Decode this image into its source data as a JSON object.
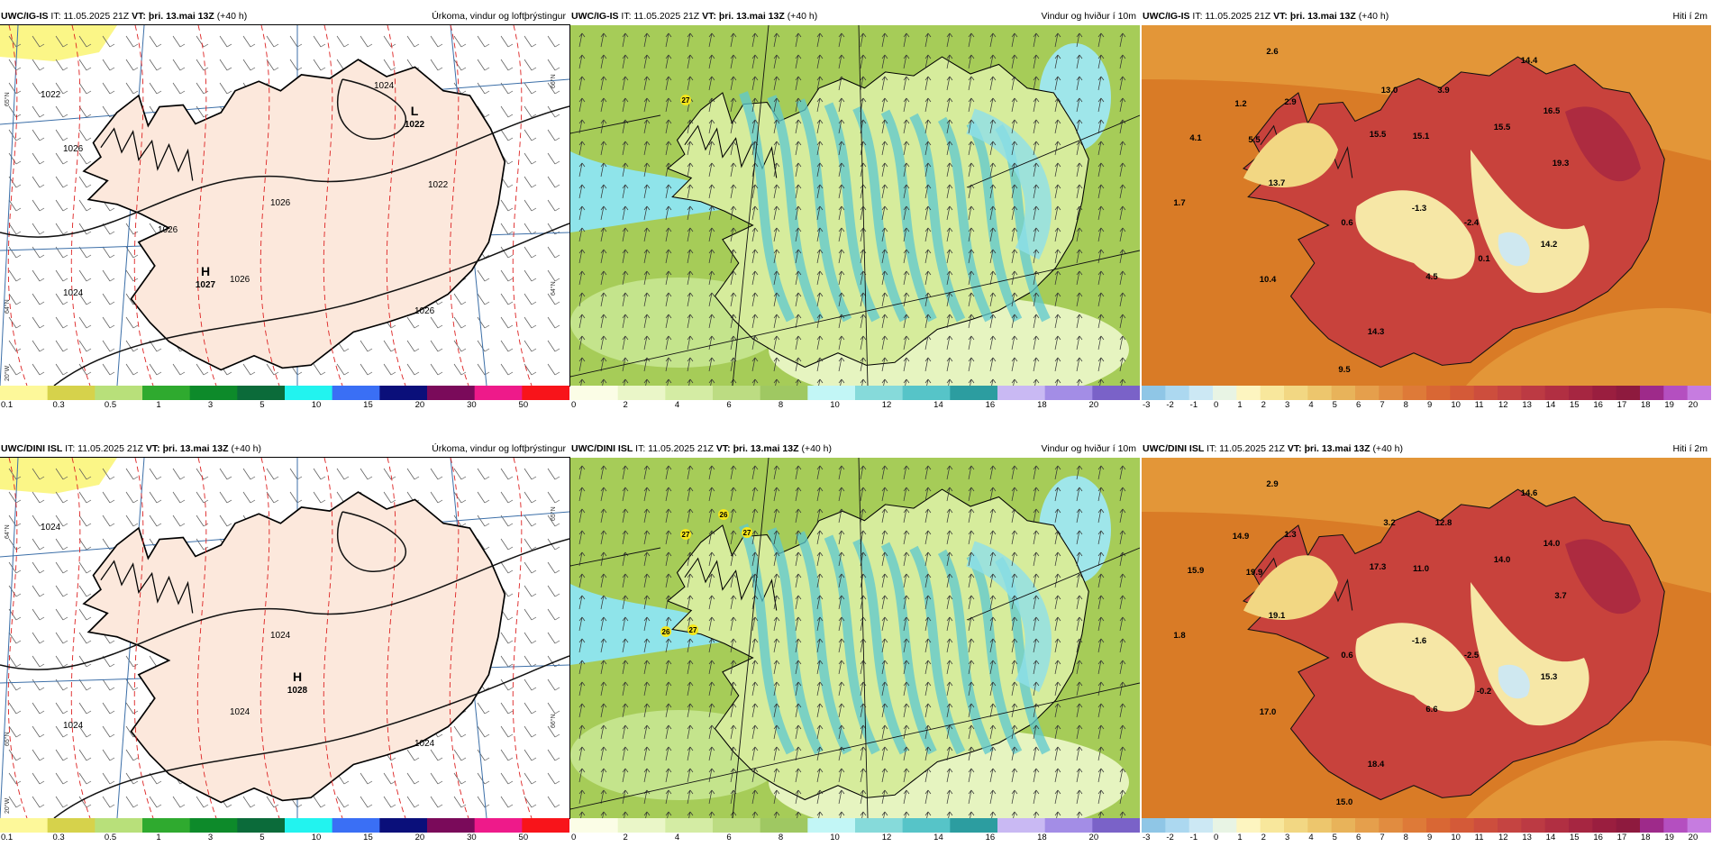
{
  "panels": [
    {
      "source": "UWC/IG-IS",
      "it": "IT: 11.05.2025 21Z",
      "vt_label": "VT:",
      "vt_date": "þri. 13.mai 13Z",
      "lead": "(+40 h)",
      "title": "Úrkoma, vindur og loftþrýstingur",
      "pressure_labels": [
        "1022",
        "1026",
        "1026",
        "1026",
        "1024",
        "1026",
        "1024",
        "1022",
        "1026"
      ],
      "centers": [
        {
          "letter": "L",
          "value": "1022"
        },
        {
          "letter": "H",
          "value": "1027"
        }
      ],
      "lat_labels": [
        "66°N",
        "64°N",
        "65°N",
        "64°N",
        "20°W"
      ]
    },
    {
      "source": "UWC/IG-IS",
      "it": "IT: 11.05.2025 21Z",
      "vt_label": "VT:",
      "vt_date": "þri. 13.mai 13Z",
      "lead": "(+40 h)",
      "title": "Vindur og hviður í 10m",
      "gust_labels": [
        "27"
      ]
    },
    {
      "source": "UWC/IG-IS",
      "it": "IT: 11.05.2025 21Z",
      "vt_label": "VT:",
      "vt_date": "þri. 13.mai 13Z",
      "lead": "(+40 h)",
      "title": "Hiti í 2m",
      "temp_labels": [
        "2.6",
        "1.2",
        "2.9",
        "13.0",
        "3.9",
        "14.4",
        "4.1",
        "5.5",
        "15.5",
        "15.1",
        "15.5",
        "16.5",
        "13.7",
        "19.3",
        "1.7",
        "0.6",
        "-1.3",
        "-2.4",
        "14.2",
        "0.1",
        "4.5",
        "10.4",
        "14.3",
        "9.5"
      ]
    },
    {
      "source": "UWC/DINI ISL",
      "it": "IT: 11.05.2025 21Z",
      "vt_label": "VT:",
      "vt_date": "þri. 13.mai 13Z",
      "lead": "(+40 h)",
      "title": "Úrkoma, vindur og loftþrýstingur",
      "pressure_labels": [
        "1024",
        "1024",
        "1024",
        "1024",
        "1024"
      ],
      "centers": [
        {
          "letter": "H",
          "value": "1028"
        }
      ],
      "lat_labels": [
        "65°N",
        "66°N",
        "64°N",
        "65°N",
        "20°W"
      ]
    },
    {
      "source": "UWC/DINI ISL",
      "it": "IT: 11.05.2025 21Z",
      "vt_label": "VT:",
      "vt_date": "þri. 13.mai 13Z",
      "lead": "(+40 h)",
      "title": "Vindur og hviður í 10m",
      "gust_labels": [
        "26",
        "27",
        "27",
        "26",
        "27"
      ]
    },
    {
      "source": "UWC/DINI ISL",
      "it": "IT: 11.05.2025 21Z",
      "vt_label": "VT:",
      "vt_date": "þri. 13.mai 13Z",
      "lead": "(+40 h)",
      "title": "Hiti í 2m",
      "temp_labels": [
        "2.9",
        "14.9",
        "1.3",
        "3.2",
        "12.8",
        "14.6",
        "15.9",
        "19.9",
        "17.3",
        "11.0",
        "14.0",
        "14.0",
        "19.1",
        "3.7",
        "1.8",
        "0.6",
        "-1.6",
        "-2.5",
        "15.3",
        "-0.2",
        "6.6",
        "17.0",
        "18.4",
        "15.0"
      ]
    }
  ],
  "colorbars": {
    "precip": {
      "ticks": [
        "0.1",
        "0.3",
        "0.5",
        "1",
        "3",
        "5",
        "10",
        "15",
        "20",
        "30",
        "50"
      ],
      "colors": [
        "#fdf89a",
        "#d6d24b",
        "#b8e07a",
        "#2faa2f",
        "#0d8a2a",
        "#0b6b3a",
        "#22f3ef",
        "#3a6ff5",
        "#0a0f7a",
        "#7a0a5a",
        "#ee1a8a",
        "#f8141a"
      ]
    },
    "wind": {
      "ticks": [
        "0",
        "2",
        "4",
        "6",
        "8",
        "10",
        "12",
        "14",
        "16",
        "18",
        "20"
      ],
      "colors": [
        "#fbfde6",
        "#eaf6c8",
        "#d4eca4",
        "#bcdc82",
        "#9fc862",
        "#c2f6f6",
        "#86dada",
        "#56c4c8",
        "#2c9da0",
        "#c9b9f3",
        "#a38de6",
        "#7a62c8"
      ]
    },
    "temp": {
      "ticks": [
        "-3",
        "-2",
        "-1",
        "0",
        "1",
        "2",
        "3",
        "4",
        "5",
        "6",
        "7",
        "8",
        "9",
        "10",
        "11",
        "12",
        "13",
        "14",
        "15",
        "16",
        "17",
        "18",
        "19",
        "20"
      ],
      "colors": [
        "#8fc6e6",
        "#acd8f0",
        "#cce8f4",
        "#e8f4e4",
        "#fdf5c0",
        "#f8e79c",
        "#f2d783",
        "#edc66d",
        "#e8b35a",
        "#e59f4c",
        "#e18c40",
        "#de7a38",
        "#d96734",
        "#d45a38",
        "#cd4e3d",
        "#c54441",
        "#bc3a43",
        "#b12f42",
        "#a62641",
        "#9a1e3f",
        "#8e1a3e",
        "#9e2a8a",
        "#b44fc0",
        "#c67ce0"
      ]
    }
  },
  "colors": {
    "land_precip": "#fce8dc",
    "sea_wind": "#a6cc58",
    "sea_temp": "#d97b26"
  },
  "icons": {
    "barb": "wind-barb",
    "arrow": "wind-arrow"
  }
}
